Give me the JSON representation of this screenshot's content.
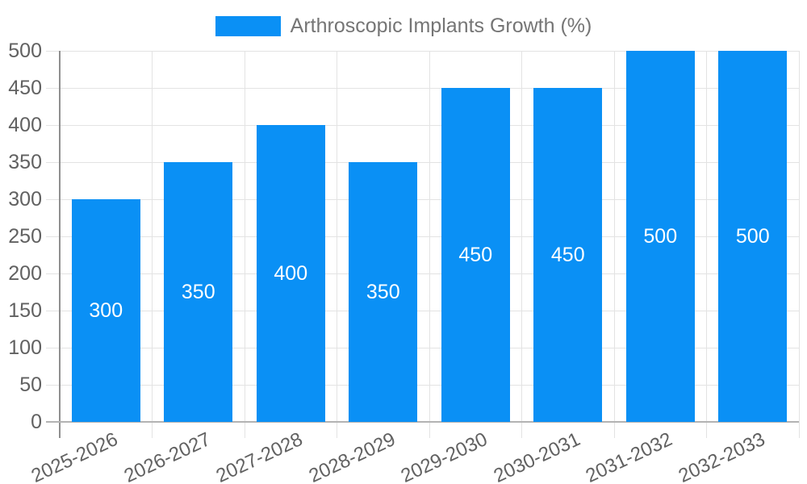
{
  "chart_data": {
    "type": "bar",
    "title": "",
    "legend": "Arthroscopic Implants Growth (%)",
    "legend_position": "top-center",
    "categories": [
      "2025-2026",
      "2026-2027",
      "2027-2028",
      "2028-2029",
      "2029-2030",
      "2030-2031",
      "2031-2032",
      "2032-2033"
    ],
    "values": [
      300,
      350,
      400,
      350,
      450,
      450,
      500,
      500
    ],
    "xlabel": "",
    "ylabel": "",
    "ylim": [
      0,
      500
    ],
    "ytick_interval": 50,
    "yticks": [
      0,
      50,
      100,
      150,
      200,
      250,
      300,
      350,
      400,
      450,
      500
    ],
    "grid": true,
    "value_labels": "inside-center"
  },
  "colors": {
    "bar": "#0a90f5",
    "bar_label": "#ffffff",
    "axis_text": "#616161",
    "legend_text": "#757575",
    "gridline": "#e3e3e3",
    "y_axis_line": "#8f8f8f",
    "x_axis_line": "#b3b3b3",
    "background": "#ffffff"
  }
}
